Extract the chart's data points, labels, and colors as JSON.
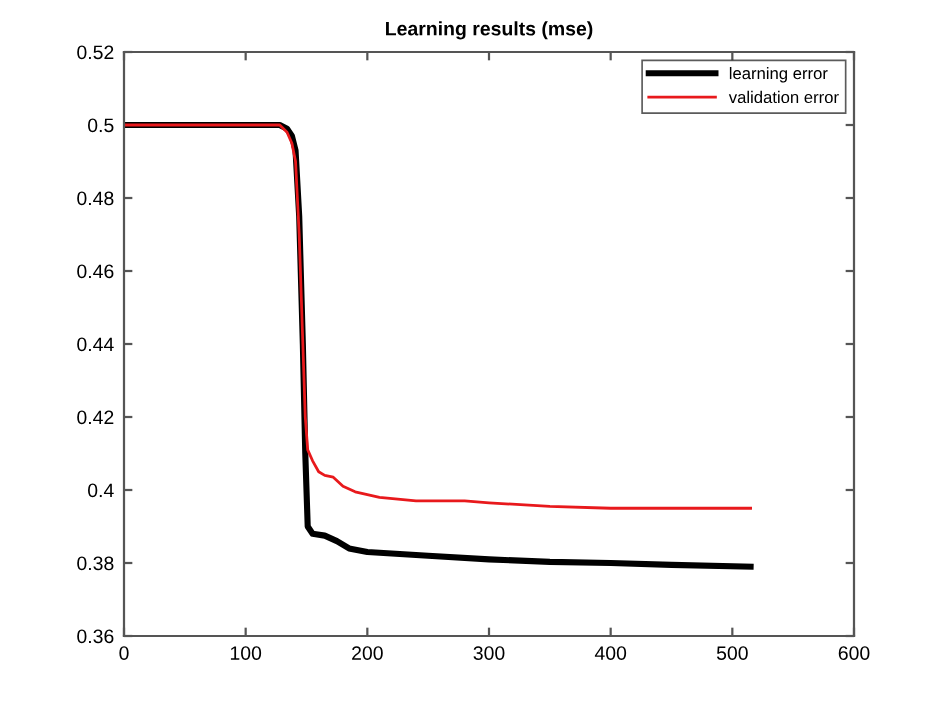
{
  "chart_data": {
    "type": "line",
    "title": "Learning results (mse)",
    "xlim": [
      0,
      600
    ],
    "ylim": [
      0.36,
      0.52
    ],
    "xticks": [
      0,
      100,
      200,
      300,
      400,
      500,
      600
    ],
    "yticks": [
      0.36,
      0.38,
      0.4,
      0.42,
      0.44,
      0.46,
      0.48,
      0.5,
      0.52
    ],
    "grid": false,
    "legend": "top right",
    "series": [
      {
        "name": "learning error",
        "color": "#000000",
        "x": [
          1,
          100,
          128,
          134,
          138,
          141,
          144,
          147,
          149,
          151,
          155,
          165,
          175,
          185,
          200,
          250,
          300,
          350,
          400,
          450,
          515
        ],
        "values": [
          0.5,
          0.5,
          0.5,
          0.499,
          0.497,
          0.493,
          0.475,
          0.44,
          0.41,
          0.39,
          0.388,
          0.3875,
          0.386,
          0.384,
          0.383,
          0.382,
          0.381,
          0.3803,
          0.38,
          0.3795,
          0.379
        ]
      },
      {
        "name": "validation error",
        "color": "#e8191c",
        "x": [
          1,
          100,
          128,
          134,
          138,
          141,
          144,
          147,
          149,
          151,
          155,
          160,
          165,
          172,
          180,
          190,
          210,
          240,
          280,
          300,
          350,
          400,
          450,
          515
        ],
        "values": [
          0.5,
          0.5,
          0.5,
          0.498,
          0.495,
          0.49,
          0.47,
          0.44,
          0.42,
          0.411,
          0.408,
          0.405,
          0.404,
          0.4035,
          0.401,
          0.3995,
          0.398,
          0.397,
          0.397,
          0.3965,
          0.3955,
          0.395,
          0.395,
          0.395
        ]
      }
    ]
  }
}
